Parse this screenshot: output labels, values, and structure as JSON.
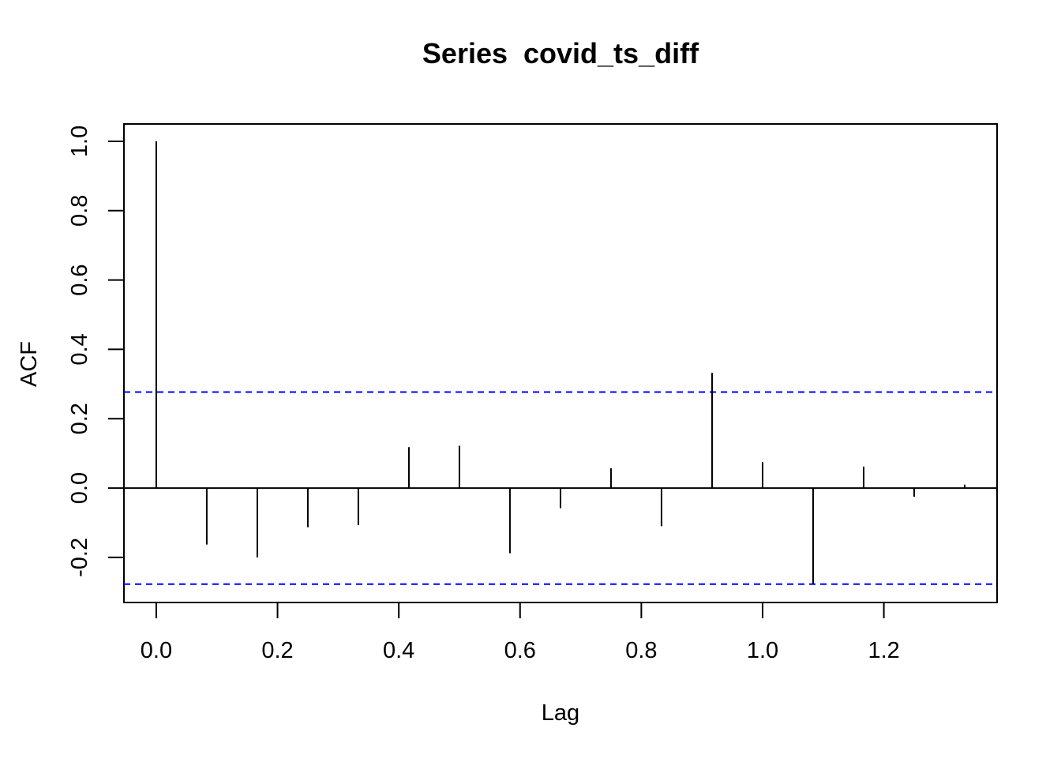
{
  "chart_data": {
    "type": "acf",
    "title": "Series  covid_ts_diff",
    "xlabel": "Lag",
    "ylabel": "ACF",
    "xlim": [
      -0.0533,
      1.3867
    ],
    "ylim": [
      -0.33,
      1.05
    ],
    "x_ticks": [
      0.0,
      0.2,
      0.4,
      0.6,
      0.8,
      1.0,
      1.2
    ],
    "x_tick_labels": [
      "0.0",
      "0.2",
      "0.4",
      "0.6",
      "0.8",
      "1.0",
      "1.2"
    ],
    "y_ticks": [
      -0.2,
      0.0,
      0.2,
      0.4,
      0.6,
      0.8,
      1.0
    ],
    "y_tick_labels": [
      "-0.2",
      "0.0",
      "0.2",
      "0.4",
      "0.6",
      "0.8",
      "1.0"
    ],
    "lags": [
      0.0,
      0.0833,
      0.1667,
      0.25,
      0.3333,
      0.4167,
      0.5,
      0.5833,
      0.6667,
      0.75,
      0.8333,
      0.9167,
      1.0,
      1.0833,
      1.1667,
      1.25,
      1.3333
    ],
    "acf": [
      1.0,
      -0.163,
      -0.2,
      -0.113,
      -0.107,
      0.118,
      0.122,
      -0.188,
      -0.058,
      0.057,
      -0.11,
      0.332,
      0.075,
      -0.277,
      0.062,
      -0.025,
      0.01
    ],
    "confidence_bounds": [
      0.277,
      -0.277
    ],
    "confidence_color": "#0000FF",
    "grid": false,
    "legend": "none"
  }
}
